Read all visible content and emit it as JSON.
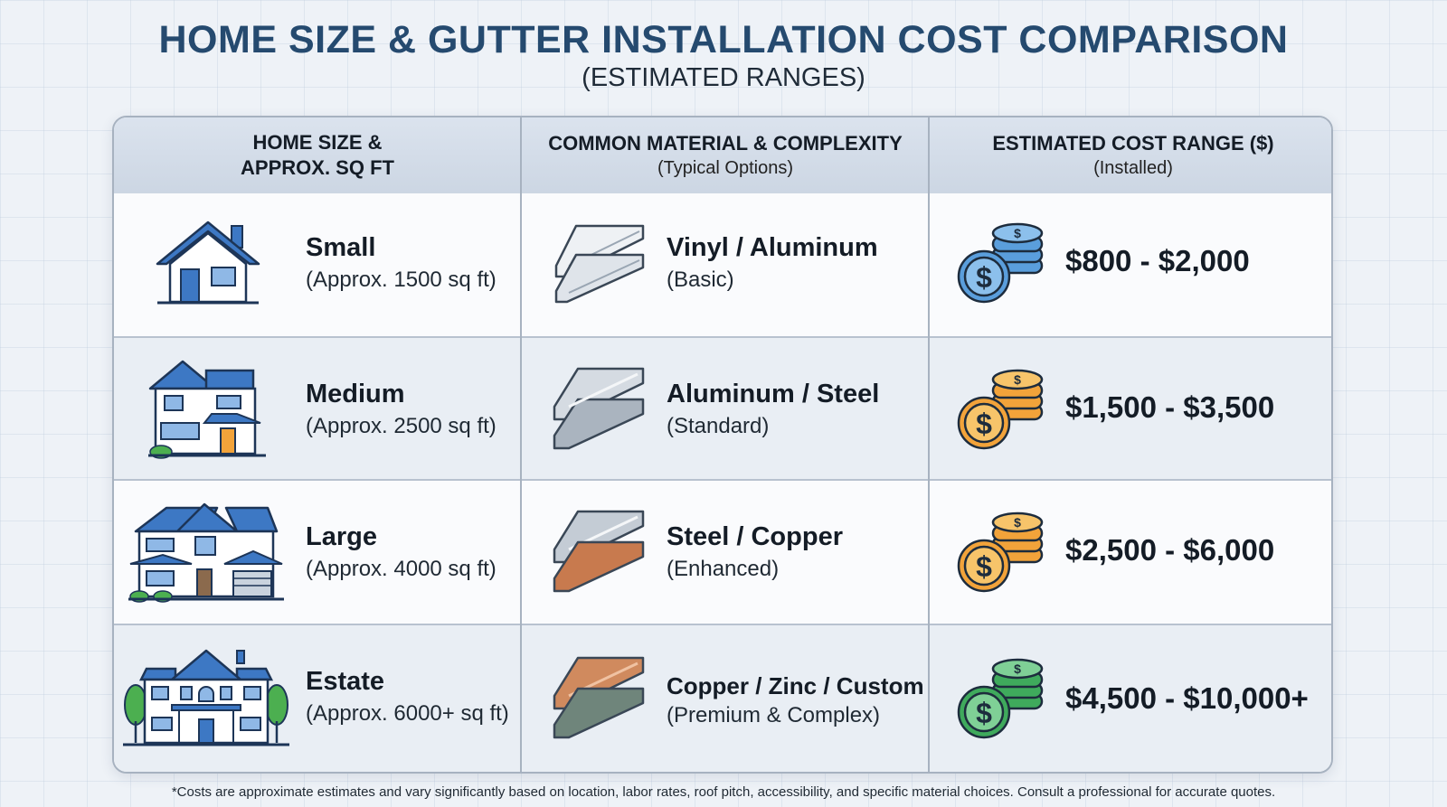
{
  "title": "HOME SIZE & GUTTER INSTALLATION COST COMPARISON",
  "subtitle": "(ESTIMATED RANGES)",
  "headers": [
    {
      "line1": "HOME SIZE &",
      "line2": "APPROX. SQ FT",
      "sub": ""
    },
    {
      "line1": "COMMON MATERIAL & COMPLEXITY",
      "line2": "",
      "sub": "(Typical Options)"
    },
    {
      "line1": "ESTIMATED COST RANGE ($)",
      "line2": "",
      "sub": "(Installed)"
    }
  ],
  "rows": [
    {
      "size": "Small",
      "area": "(Approx. 1500 sq ft)",
      "material": "Vinyl / Aluminum",
      "complexity": "(Basic)",
      "cost": "$800 - $2,000",
      "house_icon": "small-house-icon",
      "material_icon": "vinyl-aluminum-gutter-icon",
      "coin_icon": "blue-coins-icon",
      "coin_color": "#4b95d6"
    },
    {
      "size": "Medium",
      "area": "(Approx. 2500 sq ft)",
      "material": "Aluminum / Steel",
      "complexity": "(Standard)",
      "cost": "$1,500 - $3,500",
      "house_icon": "medium-house-icon",
      "material_icon": "aluminum-steel-gutter-icon",
      "coin_icon": "orange-coins-icon",
      "coin_color": "#f2a33a"
    },
    {
      "size": "Large",
      "area": "(Approx. 4000 sq ft)",
      "material": "Steel / Copper",
      "complexity": "(Enhanced)",
      "cost": "$2,500 - $6,000",
      "house_icon": "large-house-icon",
      "material_icon": "steel-copper-gutter-icon",
      "coin_icon": "orange-coins-icon",
      "coin_color": "#f2a33a"
    },
    {
      "size": "Estate",
      "area": "(Approx. 6000+ sq ft)",
      "material": "Copper / Zinc / Custom",
      "complexity": "(Premium & Complex)",
      "cost": "$4,500 - $10,000+",
      "house_icon": "estate-house-icon",
      "material_icon": "copper-zinc-gutter-icon",
      "coin_icon": "green-coins-icon",
      "coin_color": "#3faa5c"
    }
  ],
  "footnote": "*Costs are approximate estimates and vary significantly based on location, labor rates, roof pitch, accessibility, and specific material choices. Consult a professional for accurate quotes.",
  "colors": {
    "title": "#254a6f",
    "house_blue": "#3d78c4",
    "copper": "#c87a4e",
    "steel": "#b9c2cc",
    "zinc": "#6f857b"
  }
}
